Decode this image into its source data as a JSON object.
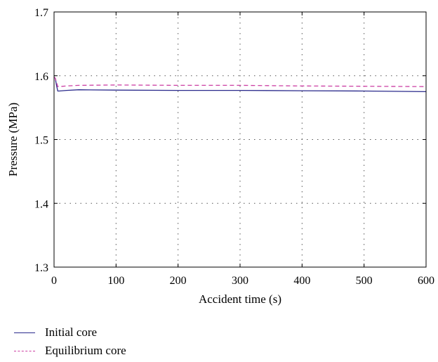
{
  "chart_data": {
    "type": "line",
    "xlabel": "Accident time (s)",
    "ylabel": "Pressure (MPa)",
    "xlim": [
      0,
      600
    ],
    "ylim": [
      1.3,
      1.7
    ],
    "xticks": [
      0,
      100,
      200,
      300,
      400,
      500,
      600
    ],
    "yticks": [
      1.3,
      1.4,
      1.5,
      1.6,
      1.7
    ],
    "xtick_labels": [
      "0",
      "100",
      "200",
      "300",
      "400",
      "500",
      "600"
    ],
    "ytick_labels": [
      "1.3",
      "1.4",
      "1.5",
      "1.6",
      "1.7"
    ],
    "grid": true,
    "legend_position": "bottom-left",
    "series": [
      {
        "name": "Initial core",
        "color": "#2b2b8c",
        "dash": "solid",
        "x": [
          0,
          2,
          4,
          6,
          8,
          20,
          40,
          100,
          200,
          300,
          400,
          500,
          600
        ],
        "y": [
          1.598,
          1.596,
          1.585,
          1.576,
          1.576,
          1.577,
          1.578,
          1.5775,
          1.577,
          1.577,
          1.5765,
          1.576,
          1.575
        ]
      },
      {
        "name": "Equilibrium core",
        "color": "#cc3fa3",
        "dash": "dashed",
        "x": [
          0,
          2,
          4,
          6,
          8,
          20,
          40,
          100,
          200,
          300,
          400,
          500,
          600
        ],
        "y": [
          1.598,
          1.596,
          1.59,
          1.583,
          1.583,
          1.584,
          1.585,
          1.5855,
          1.585,
          1.585,
          1.584,
          1.5835,
          1.583
        ]
      }
    ]
  }
}
